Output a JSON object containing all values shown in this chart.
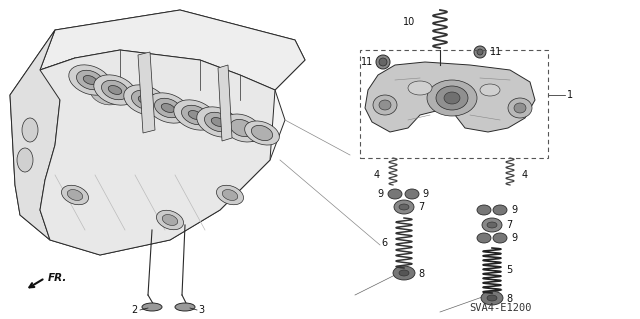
{
  "bg_color": "#ffffff",
  "diagram_code": "SVA4-E1200",
  "line_color": "#2a2a2a",
  "text_color": "#111111",
  "gray_fill": "#e8e8e8",
  "dark_gray": "#555555",
  "mid_gray": "#888888",
  "light_gray": "#cccccc"
}
